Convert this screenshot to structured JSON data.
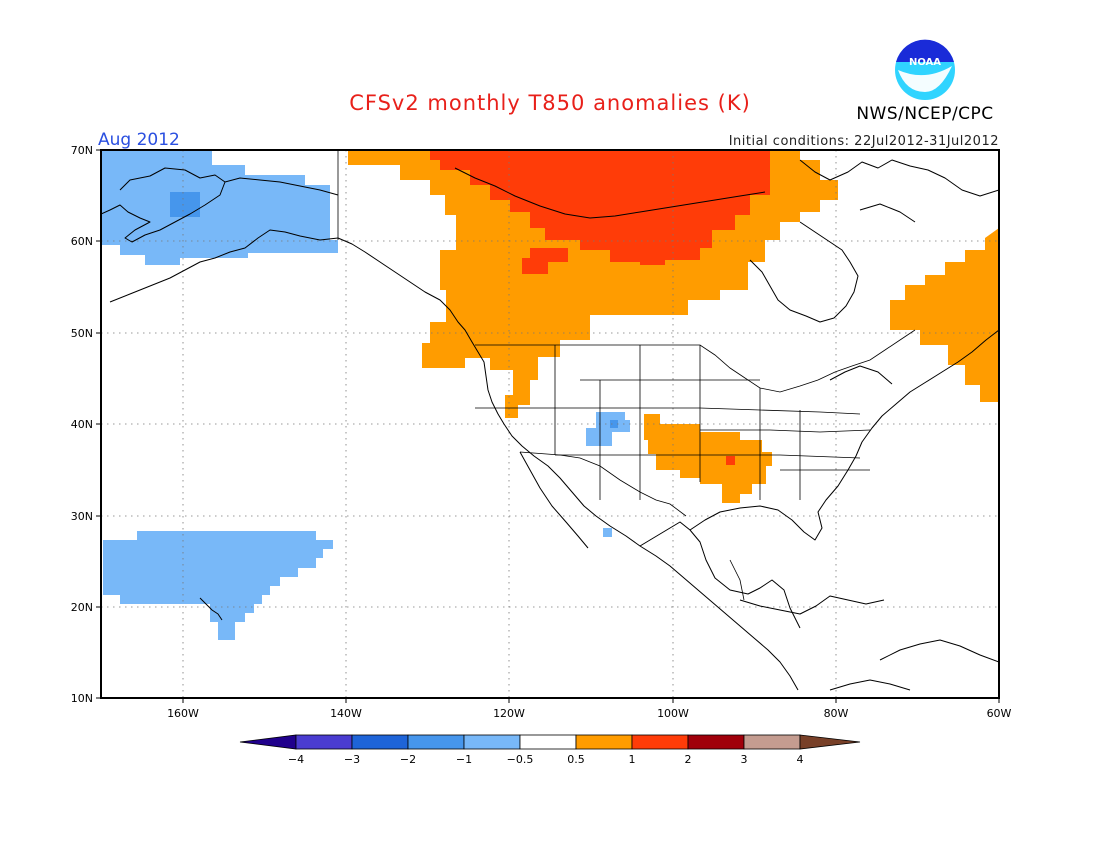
{
  "title": "CFSv2 monthly T850 anomalies (K)",
  "valid_month": "Aug 2012",
  "initial_conditions": "Initial conditions: 22Jul2012-31Jul2012",
  "organization": "NWS/NCEP/CPC",
  "logo_text": "NOAA",
  "colors": {
    "lt_m4": "#20008c",
    "m4_m3": "#4a3cd0",
    "m3_m2": "#1e64d8",
    "m2_m1": "#4696ec",
    "m1_m05": "#78b8f8",
    "m05_05": "#ffffff",
    "p05_1": "#ff9c00",
    "p1_2": "#ff3c08",
    "p2_3": "#a0000a",
    "p3_4": "#c49c90",
    "gt_4": "#784028"
  },
  "map": {
    "lon_range": [
      -170,
      -60
    ],
    "lat_range": [
      10,
      70
    ],
    "lat_ticks": [
      "70N",
      "60N",
      "50N",
      "40N",
      "30N",
      "20N",
      "10N"
    ],
    "lon_ticks": [
      "160W",
      "140W",
      "120W",
      "100W",
      "80W",
      "60W"
    ]
  },
  "colorbar": {
    "labels": [
      "−4",
      "−3",
      "−2",
      "−1",
      "−0.5",
      "0.5",
      "1",
      "2",
      "3",
      "4"
    ]
  }
}
